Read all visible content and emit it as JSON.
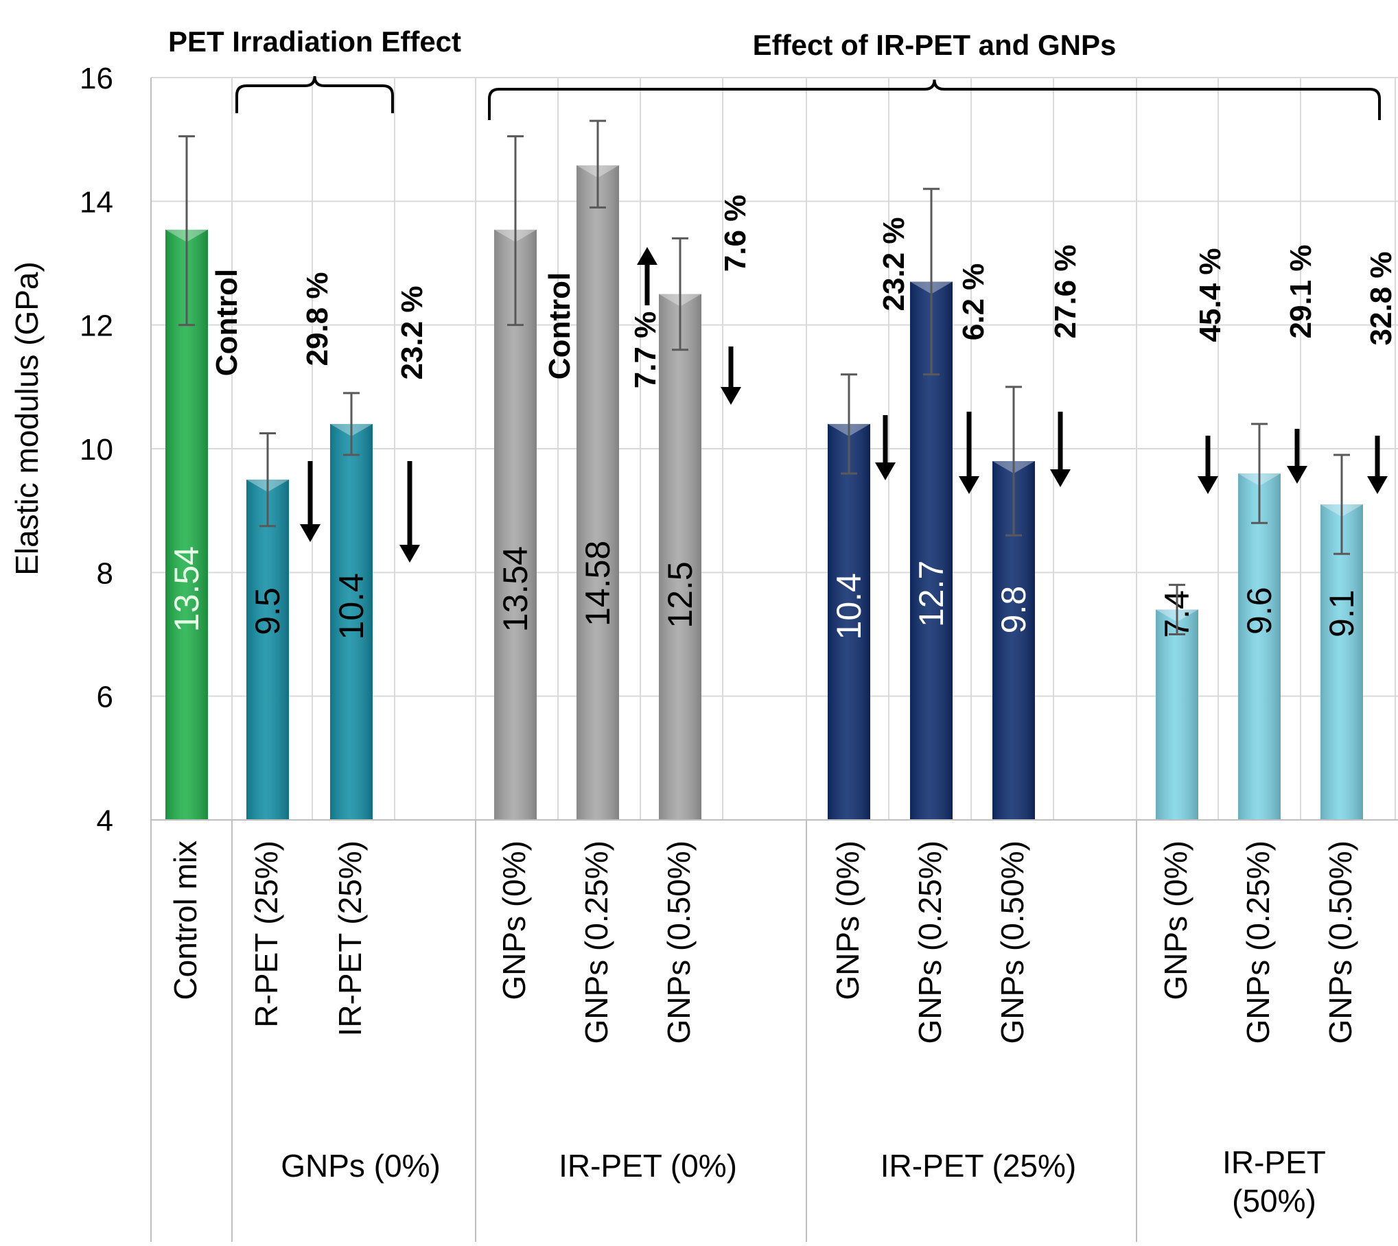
{
  "chart_data": {
    "type": "bar",
    "ylabel": "Elastic modulus (GPa)",
    "ylim": [
      4,
      16
    ],
    "yticks": [
      4,
      6,
      8,
      10,
      12,
      14,
      16
    ],
    "grid": true,
    "bars": [
      {
        "group": 0,
        "label": "Control mix",
        "value": 13.54,
        "err": [
          12.0,
          15.05
        ],
        "color": "green"
      },
      {
        "group": 1,
        "label": "R-PET (25%)",
        "value": 9.5,
        "err": [
          8.75,
          10.25
        ],
        "color": "teal"
      },
      {
        "group": 1,
        "label": "IR-PET (25%)",
        "value": 10.4,
        "err": [
          9.9,
          10.9
        ],
        "color": "teal"
      },
      {
        "group": 2,
        "label": "GNPs (0%)",
        "value": 13.54,
        "err": [
          12.0,
          15.05
        ],
        "color": "gray"
      },
      {
        "group": 2,
        "label": "GNPs (0.25%)",
        "value": 14.58,
        "err": [
          13.9,
          15.3
        ],
        "color": "gray"
      },
      {
        "group": 2,
        "label": "GNPs (0.50%)",
        "value": 12.5,
        "err": [
          11.6,
          13.4
        ],
        "color": "gray"
      },
      {
        "group": 3,
        "label": "GNPs (0%)",
        "value": 10.4,
        "err": [
          9.6,
          11.2
        ],
        "color": "navy"
      },
      {
        "group": 3,
        "label": "GNPs (0.25%)",
        "value": 12.7,
        "err": [
          11.2,
          14.2
        ],
        "color": "navy"
      },
      {
        "group": 3,
        "label": "GNPs (0.50%)",
        "value": 9.8,
        "err": [
          8.6,
          11.0
        ],
        "color": "navy"
      },
      {
        "group": 4,
        "label": "GNPs (0%)",
        "value": 7.4,
        "err": [
          7.0,
          7.8
        ],
        "color": "lightblue"
      },
      {
        "group": 4,
        "label": "GNPs (0.25%)",
        "value": 9.6,
        "err": [
          8.8,
          10.4
        ],
        "color": "lightblue"
      },
      {
        "group": 4,
        "label": "GNPs (0.50%)",
        "value": 9.1,
        "err": [
          8.3,
          9.9
        ],
        "color": "lightblue"
      }
    ],
    "value_labels": [
      "13.54",
      "9.5",
      "10.4",
      "13.54",
      "14.58",
      "12.5",
      "10.4",
      "12.7",
      "9.8",
      "7.4",
      "9.6",
      "9.1"
    ],
    "group_labels": [
      "",
      "GNPs (0%)",
      "IR-PET (0%)",
      "IR-PET (25%)",
      "IR-PET\n(50%)"
    ],
    "brackets": [
      {
        "label": "PET Irradiation Effect"
      },
      {
        "label": "Effect of IR-PET and GNPs"
      }
    ],
    "annotations": [
      {
        "text": "Control",
        "bar": 0
      },
      {
        "text": "29.8 %",
        "direction": "down",
        "bar": 1
      },
      {
        "text": "23.2 %",
        "direction": "down",
        "bar": 2
      },
      {
        "text": "Control",
        "bar": 3
      },
      {
        "text": "7.7 %",
        "direction": "up",
        "bar": 4
      },
      {
        "text": "7.6 %",
        "direction": "down",
        "bar": 5
      },
      {
        "text": "23.2 %",
        "direction": "down",
        "bar": 6
      },
      {
        "text": "6.2 %",
        "direction": "down",
        "bar": 7
      },
      {
        "text": "27.6 %",
        "direction": "down",
        "bar": 8
      },
      {
        "text": "45.4 %",
        "direction": "down",
        "bar": 9
      },
      {
        "text": "29.1 %",
        "direction": "down",
        "bar": 10
      },
      {
        "text": "32.8 %",
        "direction": "down",
        "bar": 11
      }
    ],
    "colors": {
      "green": "#22b14c",
      "teal": "#148fa6",
      "gray": "#a6a6a6",
      "navy": "#0f2d6e",
      "lightblue": "#7fd4e6",
      "grid": "#d9d9d9",
      "axis": "#bfbfbf",
      "text": "#000000",
      "error": "#595959"
    }
  }
}
